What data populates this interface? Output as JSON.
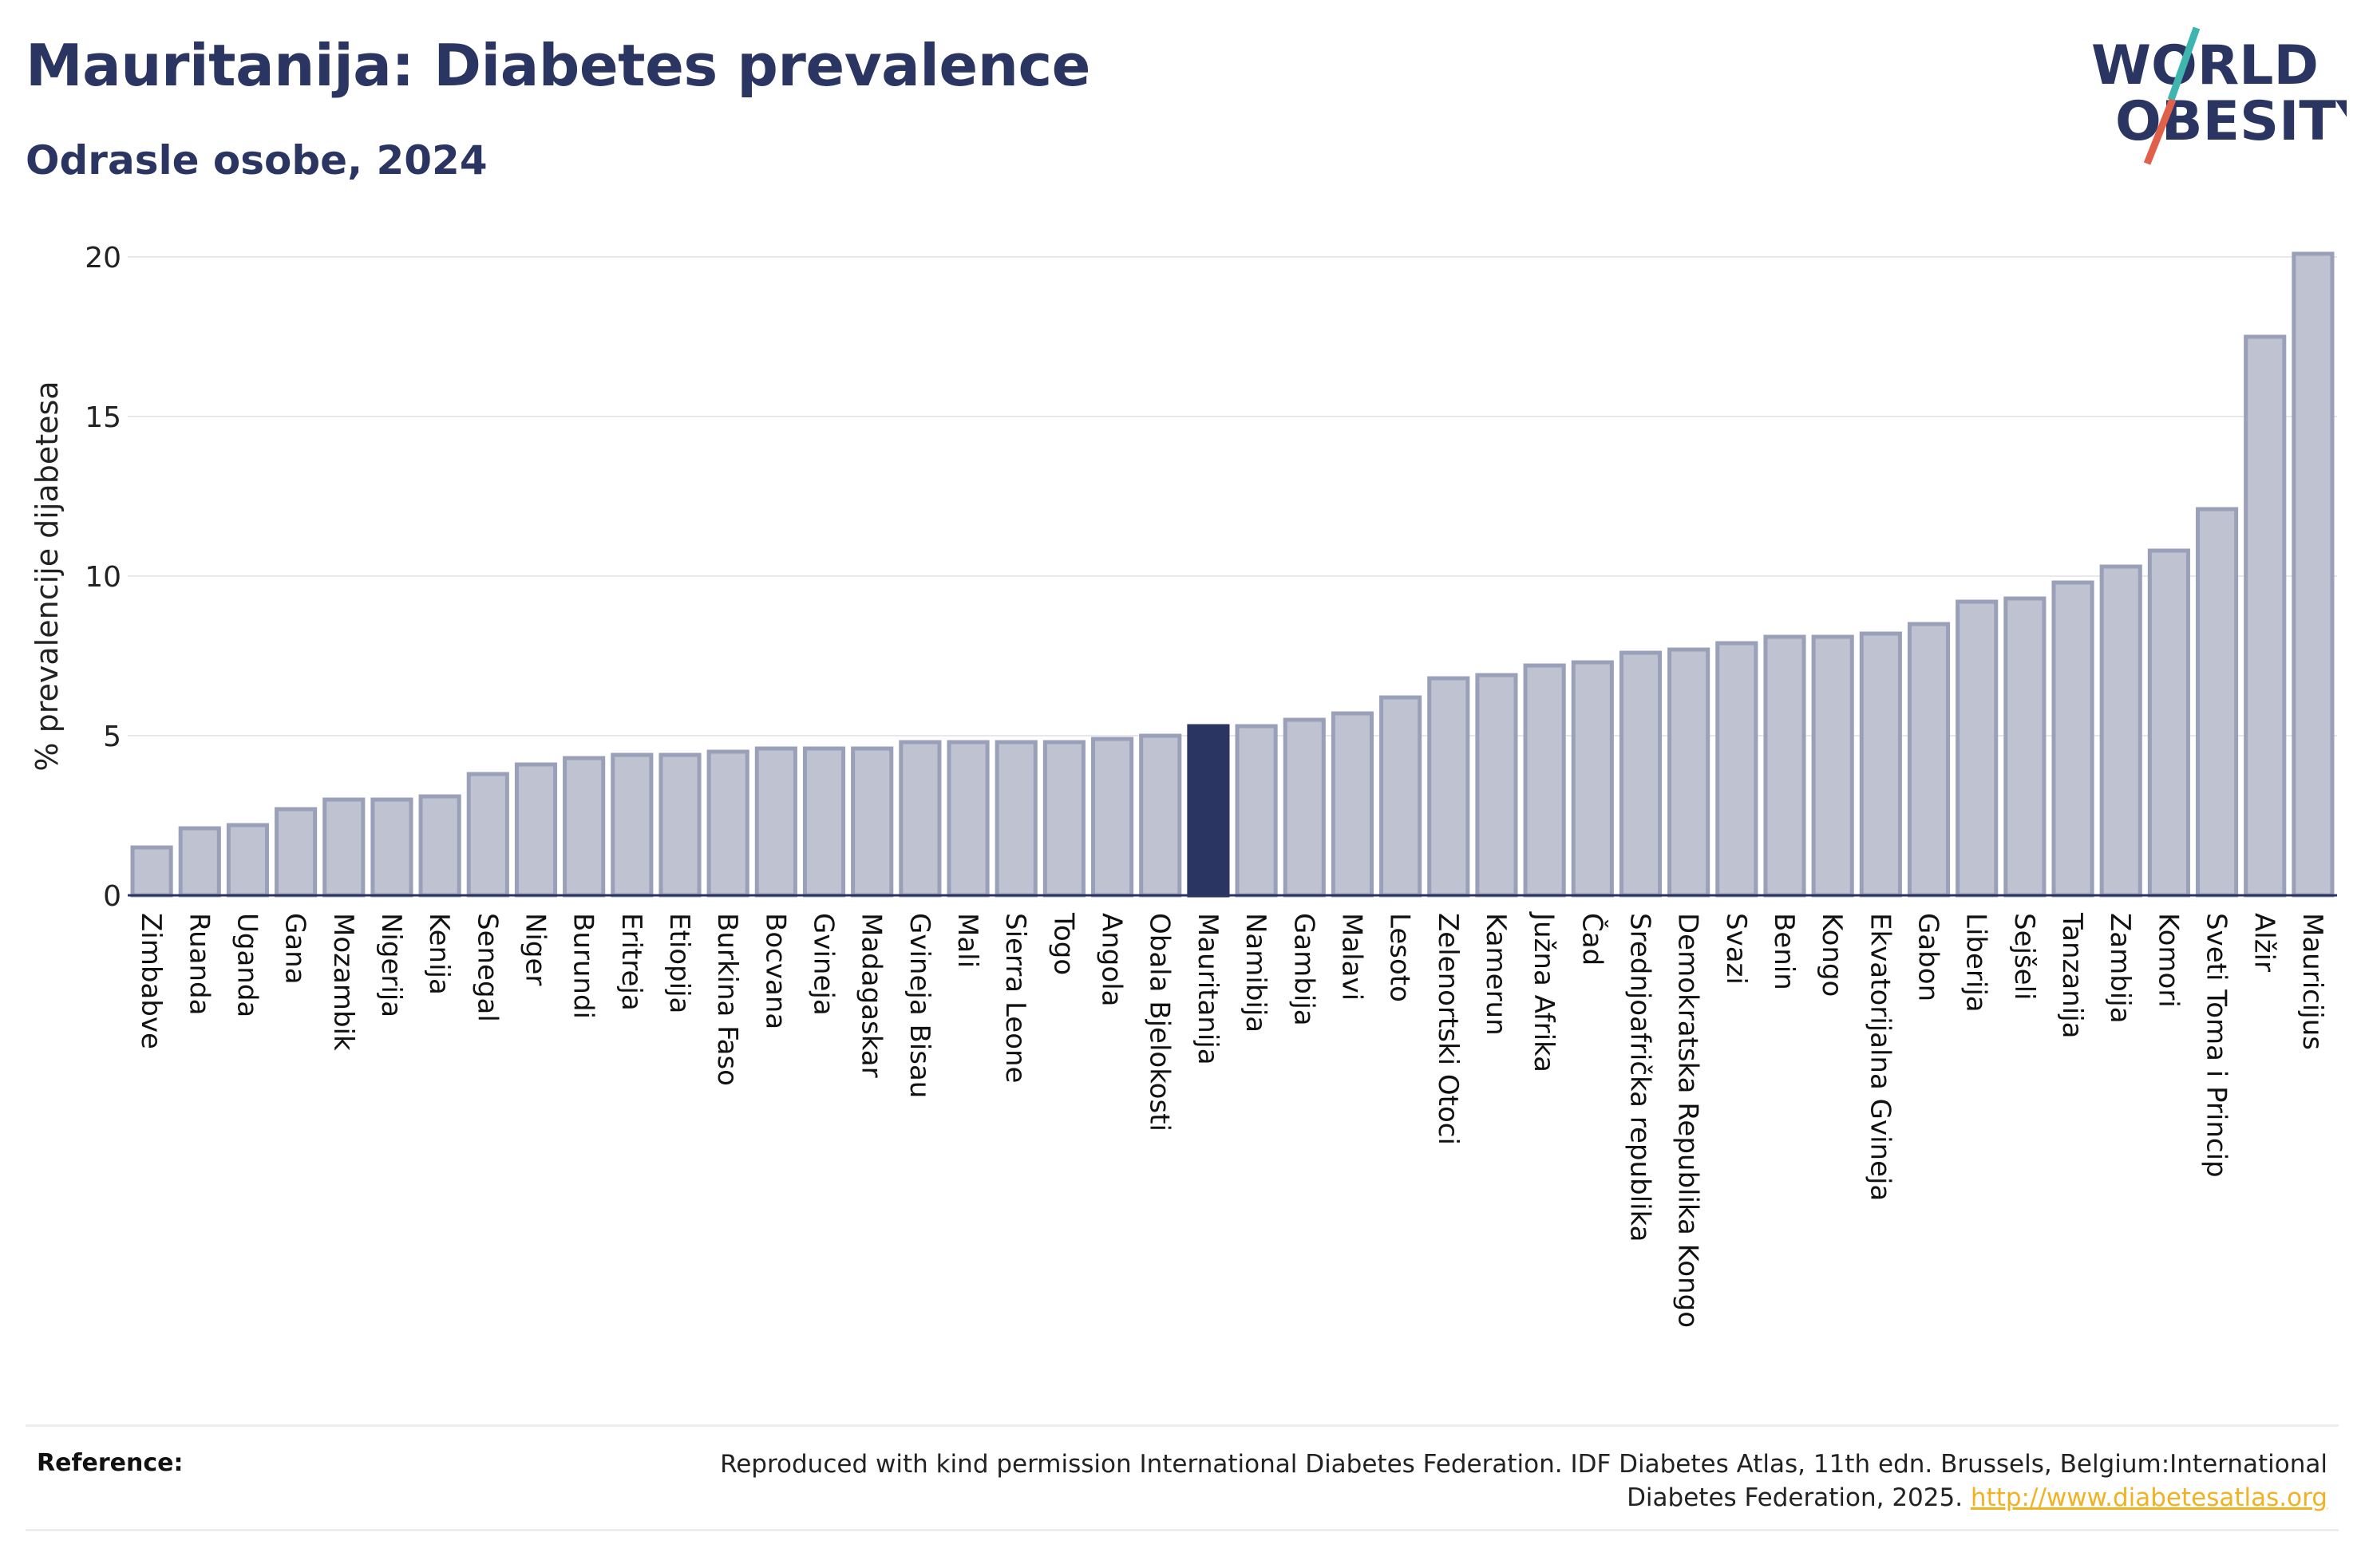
{
  "header": {
    "title": "Mauritanija: Diabetes prevalence",
    "subtitle": "Odrasle osobe, 2024"
  },
  "logo": {
    "line1": "WORLD",
    "line2": "OBESITY"
  },
  "colors": {
    "title": "#2b3561",
    "bar": "#bfc2d0",
    "bar_border": "#9aa0b8",
    "highlight": "#2b3561",
    "link": "#f0b223",
    "logo_teal": "#3fb5b0",
    "logo_red": "#e0604a"
  },
  "chart_data": {
    "type": "bar",
    "ylabel": "% prevalencije dijabetesa",
    "ylim": [
      0,
      20
    ],
    "yticks": [
      0,
      5,
      10,
      15,
      20
    ],
    "grid": true,
    "highlight": "Mauritanija",
    "categories": [
      "Zimbabve",
      "Ruanda",
      "Uganda",
      "Gana",
      "Mozambik",
      "Nigerija",
      "Kenija",
      "Senegal",
      "Niger",
      "Burundi",
      "Eritreja",
      "Etiopija",
      "Burkina Faso",
      "Bocvana",
      "Gvineja",
      "Madagaskar",
      "Gvineja Bisau",
      "Mali",
      "Sierra Leone",
      "Togo",
      "Angola",
      "Obala Bjelokosti",
      "Mauritanija",
      "Namibija",
      "Gambija",
      "Malavi",
      "Lesoto",
      "Zelenortski Otoci",
      "Kamerun",
      "Južna Afrika",
      "Čad",
      "Srednjoafrička republika",
      "Demokratska Republika Kongo",
      "Svazi",
      "Benin",
      "Kongo",
      "Ekvatorijalna Gvineja",
      "Gabon",
      "Liberija",
      "Sejšeli",
      "Tanzanija",
      "Zambija",
      "Komori",
      "Sveti Toma i Princip",
      "Alžir",
      "Mauricijus"
    ],
    "values": [
      1.5,
      2.1,
      2.2,
      2.7,
      3.0,
      3.0,
      3.1,
      3.8,
      4.1,
      4.3,
      4.4,
      4.4,
      4.5,
      4.6,
      4.6,
      4.6,
      4.8,
      4.8,
      4.8,
      4.8,
      4.9,
      5.0,
      5.3,
      5.3,
      5.5,
      5.7,
      6.2,
      6.8,
      6.9,
      7.2,
      7.3,
      7.6,
      7.7,
      7.9,
      8.1,
      8.1,
      8.2,
      8.5,
      9.2,
      9.3,
      9.8,
      10.3,
      10.8,
      12.1,
      17.5,
      20.1
    ]
  },
  "footer": {
    "reference_label": "Reference:",
    "reference_text": "Reproduced with kind permission International Diabetes Federation. IDF Diabetes Atlas, 11th edn. Brussels, Belgium:International Diabetes Federation, 2025.",
    "reference_link": "http://www.diabetesatlas.org"
  }
}
